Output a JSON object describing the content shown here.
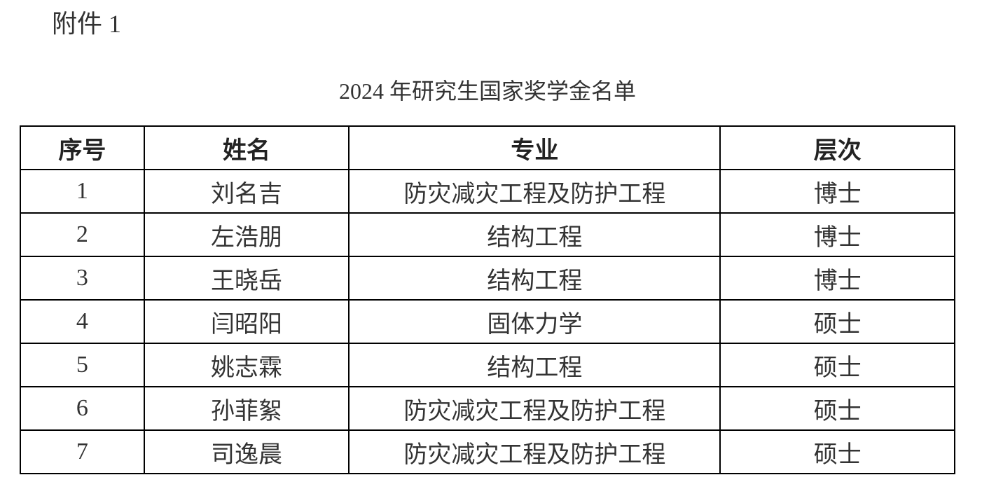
{
  "attachment_label": "附件 1",
  "title": "2024 年研究生国家奖学金名单",
  "table": {
    "headers": [
      "序号",
      "姓名",
      "专业",
      "层次"
    ],
    "rows": [
      [
        "1",
        "刘名吉",
        "防灾减灾工程及防护工程",
        "博士"
      ],
      [
        "2",
        "左浩朋",
        "结构工程",
        "博士"
      ],
      [
        "3",
        "王晓岳",
        "结构工程",
        "博士"
      ],
      [
        "4",
        "闫昭阳",
        "固体力学",
        "硕士"
      ],
      [
        "5",
        "姚志霖",
        "结构工程",
        "硕士"
      ],
      [
        "6",
        "孙菲絮",
        "防灾减灾工程及防护工程",
        "硕士"
      ],
      [
        "7",
        "司逸晨",
        "防灾减灾工程及防护工程",
        "硕士"
      ]
    ]
  }
}
